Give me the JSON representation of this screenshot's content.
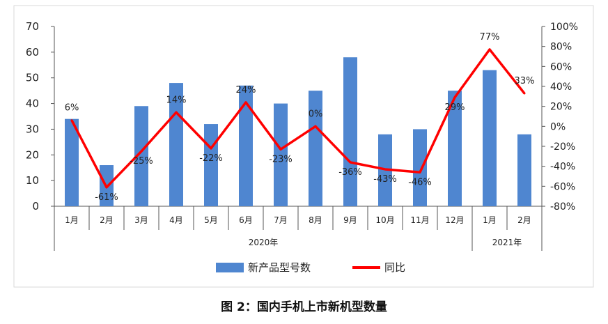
{
  "caption": "图 2：国内手机上市新机型数量",
  "chart_data": {
    "type": "bar",
    "categories": [
      "1月",
      "2月",
      "3月",
      "4月",
      "5月",
      "6月",
      "7月",
      "8月",
      "9月",
      "10月",
      "11月",
      "12月",
      "1月",
      "2月"
    ],
    "year_groups": [
      {
        "label": "2020年",
        "count": 12
      },
      {
        "label": "2021年",
        "count": 2
      }
    ],
    "series": [
      {
        "name": "新产品型号数",
        "type": "bar",
        "axis": "left",
        "color": "#4f86d0",
        "values": [
          34,
          16,
          39,
          48,
          32,
          47,
          40,
          45,
          58,
          28,
          30,
          45,
          53,
          28
        ]
      },
      {
        "name": "同比",
        "type": "line",
        "axis": "right",
        "color": "#ff0000",
        "values": [
          6,
          -61,
          -25,
          14,
          -22,
          24,
          -23,
          0,
          -36,
          -43,
          -46,
          29,
          77,
          33
        ],
        "labels": [
          "6%",
          "-61%",
          "-25%",
          "14%",
          "-22%",
          "24%",
          "-23%",
          "0%",
          "-36%",
          "-43%",
          "-46%",
          "29%",
          "77%",
          "33%"
        ]
      }
    ],
    "y_left": {
      "min": 0,
      "max": 70,
      "ticks": [
        "0",
        "10",
        "20",
        "30",
        "40",
        "50",
        "60",
        "70"
      ]
    },
    "y_right": {
      "min": -80,
      "max": 100,
      "ticks": [
        "-80%",
        "-60%",
        "-40%",
        "-20%",
        "0%",
        "20%",
        "40%",
        "60%",
        "80%",
        "100%"
      ]
    },
    "grid": false,
    "legend_position": "bottom"
  }
}
